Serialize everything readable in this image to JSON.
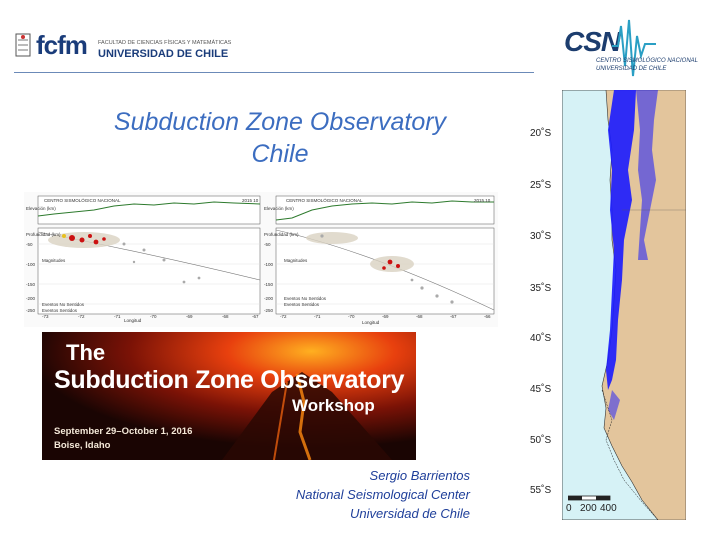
{
  "header": {
    "fcfm_logo_mark": "fcfm",
    "fcfm_subtitle": "FACULTAD DE CIENCIAS FÍSICAS Y MATEMÁTICAS",
    "fcfm_university": "UNIVERSIDAD DE CHILE",
    "csn_logo_mark": "CSN",
    "csn_line1": "CENTRO SISMOLÓGICO NACIONAL",
    "csn_line2": "UNIVERSIDAD DE CHILE"
  },
  "title": {
    "line1": "Subduction Zone Observatory",
    "line2": "Chile"
  },
  "cross_sections": {
    "left": {
      "heading": "CENTRO SISMOLÓGICO NACIONAL",
      "code": "2015 10",
      "y_top_label": "Elevación (km)",
      "y_bottom_label": "Profundidad (km)",
      "x_label": "Longitud",
      "x_ticks": [
        "-73",
        "-72",
        "-71",
        "-70",
        "-69",
        "-68",
        "-67"
      ],
      "y_ticks": [
        "-50",
        "-100",
        "-150",
        "-200",
        "-250"
      ],
      "legend_title": "Magnitudes",
      "legend_entries": [
        "Eventos No Sentidos",
        "Eventos Sentidos"
      ]
    },
    "right": {
      "heading": "CENTRO SISMOLÓGICO NACIONAL",
      "code": "2015 10",
      "y_top_label": "Elevación (km)",
      "y_bottom_label": "Profundidad (km)",
      "x_label": "Longitud",
      "x_ticks": [
        "-72",
        "-71",
        "-70",
        "-69",
        "-68",
        "-67",
        "-66"
      ],
      "y_ticks": [
        "-50",
        "-100",
        "-150",
        "-200",
        "-250"
      ],
      "legend_title": "Magnitudes",
      "legend_entries": [
        "Eventos No Sentidos",
        "Eventos Sentidos"
      ]
    }
  },
  "banner": {
    "line1": "The",
    "line2": "Subduction Zone Observatory",
    "line3": "Workshop",
    "dates": "September 29–October 1, 2016",
    "place": "Boise, Idaho"
  },
  "author": {
    "name": "Sergio Barrientos",
    "org": "National Seismological Center",
    "univ": "Universidad de Chile"
  },
  "map": {
    "latitudes": [
      "20˚S",
      "25˚S",
      "30˚S",
      "35˚S",
      "40˚S",
      "45˚S",
      "50˚S",
      "55˚S"
    ],
    "scale": [
      "0",
      "200",
      "400"
    ],
    "colors": {
      "ocean": "#d6f2f6",
      "land": "#e3c59c",
      "events": "#1a1aff"
    }
  }
}
